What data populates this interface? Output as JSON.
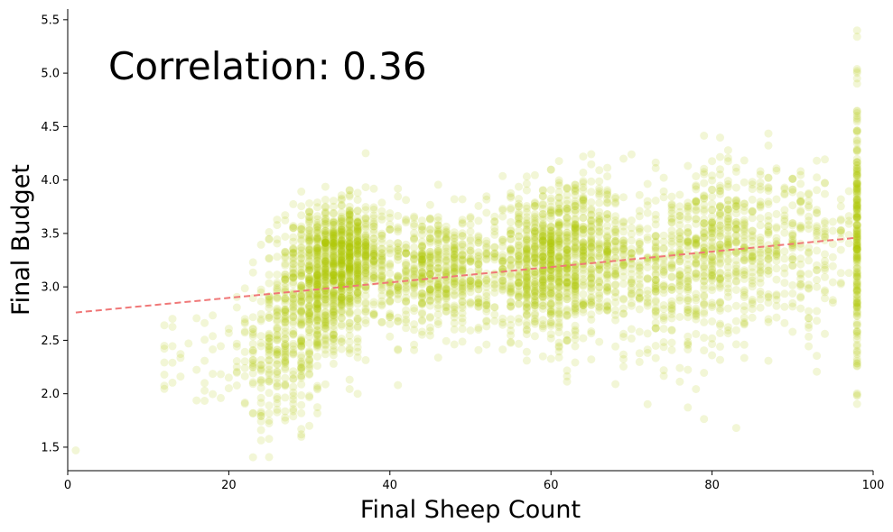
{
  "chart_data": {
    "type": "scatter",
    "title": "",
    "xlabel": "Final Sheep Count",
    "ylabel": "Final Budget",
    "xlim": [
      0,
      100
    ],
    "ylim": [
      1.28,
      5.6
    ],
    "xticks": [
      "0",
      "20",
      "40",
      "60",
      "80",
      "100"
    ],
    "yticks": [
      "1.5",
      "2.0",
      "2.5",
      "3.0",
      "3.5",
      "4.0",
      "4.5",
      "5.0",
      "5.5"
    ],
    "annotation": "Correlation: 0.36",
    "point_color": "#aec800",
    "trend_color": "#f07878",
    "grid": false,
    "legend": "none",
    "trendline": {
      "x": [
        1,
        98
      ],
      "y": [
        2.76,
        3.46
      ],
      "style": "dashed"
    },
    "clusters": [
      {
        "x_center": 22,
        "x_spread": 7,
        "y_center": 2.3,
        "y_spread": 0.3,
        "n": 90
      },
      {
        "x_center": 27,
        "x_spread": 2.5,
        "y_center": 2.45,
        "y_spread": 0.45,
        "n": 260
      },
      {
        "x_center": 32,
        "x_spread": 3,
        "y_center": 3.05,
        "y_spread": 0.35,
        "n": 700
      },
      {
        "x_center": 35,
        "x_spread": 2.5,
        "y_center": 3.35,
        "y_spread": 0.22,
        "n": 450
      },
      {
        "x_center": 46,
        "x_spread": 4,
        "y_center": 3.15,
        "y_spread": 0.28,
        "n": 600
      },
      {
        "x_center": 59,
        "x_spread": 3.5,
        "y_center": 3.2,
        "y_spread": 0.35,
        "n": 700
      },
      {
        "x_center": 64,
        "x_spread": 3,
        "y_center": 3.35,
        "y_spread": 0.3,
        "n": 350
      },
      {
        "x_center": 74,
        "x_spread": 5,
        "y_center": 3.1,
        "y_spread": 0.38,
        "n": 450
      },
      {
        "x_center": 81,
        "x_spread": 3,
        "y_center": 3.45,
        "y_spread": 0.35,
        "n": 300
      },
      {
        "x_center": 90,
        "x_spread": 4.5,
        "y_center": 3.35,
        "y_spread": 0.4,
        "n": 300
      },
      {
        "x_center": 98,
        "x_spread": 0,
        "y_center": 3.5,
        "y_spread": 0.6,
        "n": 200
      }
    ],
    "outliers": [
      {
        "x": 1,
        "y": 1.47
      },
      {
        "x": 98,
        "y": 5.4
      },
      {
        "x": 83,
        "y": 1.68
      },
      {
        "x": 98,
        "y": 5.02
      },
      {
        "x": 98,
        "y": 4.95
      }
    ]
  }
}
